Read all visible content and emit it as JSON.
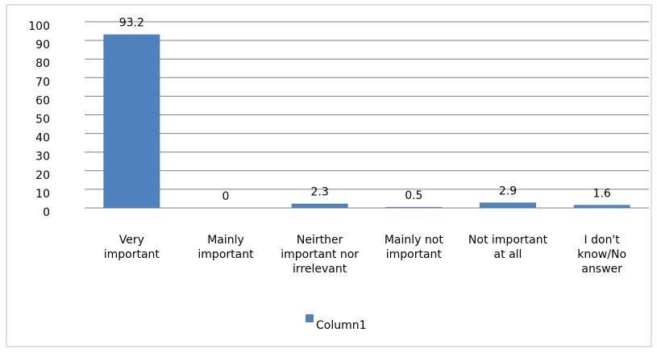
{
  "chart_data": {
    "type": "bar",
    "categories": [
      "Very important",
      "Mainly important",
      "Neirther important nor irrelevant",
      "Mainly not important",
      "Not important at all",
      "I don't know/No answer"
    ],
    "series": [
      {
        "name": "Column1",
        "color": "#4f81bd",
        "values": [
          93.2,
          0,
          2.3,
          0.5,
          2.9,
          1.6
        ]
      }
    ],
    "ylim": [
      0,
      100
    ],
    "yticks": [
      0,
      10,
      20,
      30,
      40,
      50,
      60,
      70,
      80,
      90,
      100
    ],
    "grid": true,
    "legend": "bottom"
  }
}
